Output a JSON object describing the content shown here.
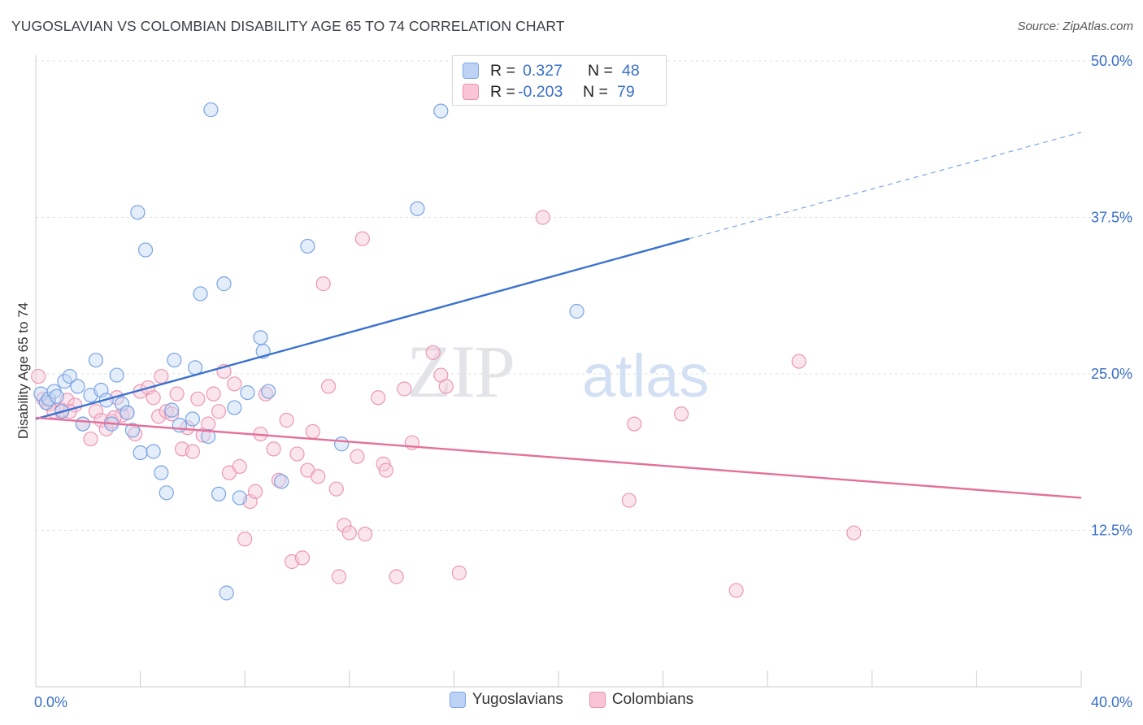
{
  "header": {
    "title": "YUGOSLAVIAN VS COLOMBIAN DISABILITY AGE 65 TO 74 CORRELATION CHART",
    "source": "Source: ZipAtlas.com"
  },
  "watermark": {
    "part1": "ZIP",
    "part2": "atlas"
  },
  "correlation_legend": {
    "rows": [
      {
        "r_label": "R =",
        "r_value": "0.327",
        "n_label": "N =",
        "n_value": "48",
        "color": "#6f9ee6"
      },
      {
        "r_label": "R =",
        "r_value": "-0.203",
        "n_label": "N =",
        "n_value": "79",
        "color": "#ee8eb0"
      }
    ]
  },
  "legend": {
    "items": [
      {
        "label": "Yugoslavians",
        "color": "#6f9ee6"
      },
      {
        "label": "Colombians",
        "color": "#ee8eb0"
      }
    ]
  },
  "chart_data": {
    "type": "scatter",
    "ylabel": "Disability Age 65 to 74",
    "xlim": [
      0,
      40
    ],
    "ylim": [
      0,
      50
    ],
    "x_tick_labels": [
      {
        "value": 0,
        "label": "0.0%"
      },
      {
        "value": 40,
        "label": "40.0%"
      }
    ],
    "y_tick_labels": [
      {
        "value": 50,
        "label": "50.0%"
      },
      {
        "value": 37.5,
        "label": "37.5%"
      },
      {
        "value": 25,
        "label": "25.0%"
      },
      {
        "value": 12.5,
        "label": "12.5%"
      }
    ],
    "legend_position": "bottom",
    "series": [
      {
        "name": "Yugoslavians",
        "color": "#6f9ee6",
        "trend": {
          "x": [
            0,
            25
          ],
          "y": [
            21.4,
            35.8
          ],
          "dashed_to": [
            40,
            44.3
          ]
        },
        "points": [
          [
            0.2,
            23.4
          ],
          [
            0.4,
            22.7
          ],
          [
            0.5,
            23.0
          ],
          [
            0.7,
            23.6
          ],
          [
            0.8,
            23.2
          ],
          [
            1.0,
            22.0
          ],
          [
            1.1,
            24.4
          ],
          [
            1.3,
            24.8
          ],
          [
            1.6,
            24.0
          ],
          [
            1.8,
            21.0
          ],
          [
            2.1,
            23.3
          ],
          [
            2.3,
            26.1
          ],
          [
            2.5,
            23.7
          ],
          [
            2.7,
            22.9
          ],
          [
            2.9,
            21.0
          ],
          [
            3.1,
            24.9
          ],
          [
            3.3,
            22.6
          ],
          [
            3.5,
            21.9
          ],
          [
            3.7,
            20.5
          ],
          [
            3.9,
            37.9
          ],
          [
            4.0,
            18.7
          ],
          [
            4.2,
            34.9
          ],
          [
            4.5,
            18.8
          ],
          [
            4.8,
            17.1
          ],
          [
            5.0,
            15.5
          ],
          [
            5.2,
            22.1
          ],
          [
            5.3,
            26.1
          ],
          [
            5.5,
            20.9
          ],
          [
            6.0,
            21.4
          ],
          [
            6.1,
            25.5
          ],
          [
            6.3,
            31.4
          ],
          [
            6.6,
            20.0
          ],
          [
            6.7,
            46.1
          ],
          [
            7.0,
            15.4
          ],
          [
            7.2,
            32.2
          ],
          [
            7.6,
            22.3
          ],
          [
            7.8,
            15.1
          ],
          [
            8.1,
            23.5
          ],
          [
            8.6,
            27.9
          ],
          [
            8.7,
            26.8
          ],
          [
            8.9,
            23.6
          ],
          [
            9.4,
            16.4
          ],
          [
            10.4,
            35.2
          ],
          [
            11.7,
            19.4
          ],
          [
            14.6,
            38.2
          ],
          [
            15.5,
            46.0
          ],
          [
            20.7,
            30.0
          ],
          [
            7.3,
            7.5
          ]
        ]
      },
      {
        "name": "Colombians",
        "color": "#ee8eb0",
        "trend": {
          "x": [
            0,
            40
          ],
          "y": [
            21.5,
            15.1
          ]
        },
        "points": [
          [
            0.1,
            24.8
          ],
          [
            0.3,
            23.0
          ],
          [
            0.5,
            22.6
          ],
          [
            0.7,
            22.0
          ],
          [
            1.0,
            22.1
          ],
          [
            1.2,
            22.9
          ],
          [
            1.5,
            22.5
          ],
          [
            1.8,
            21.0
          ],
          [
            2.1,
            19.8
          ],
          [
            2.3,
            22.0
          ],
          [
            2.5,
            21.3
          ],
          [
            2.7,
            20.6
          ],
          [
            2.9,
            21.2
          ],
          [
            3.1,
            23.1
          ],
          [
            3.3,
            21.7
          ],
          [
            3.5,
            21.9
          ],
          [
            3.8,
            20.2
          ],
          [
            4.0,
            23.6
          ],
          [
            4.3,
            23.9
          ],
          [
            4.5,
            23.1
          ],
          [
            4.7,
            21.6
          ],
          [
            4.8,
            24.8
          ],
          [
            5.0,
            22.0
          ],
          [
            5.2,
            21.8
          ],
          [
            5.4,
            23.4
          ],
          [
            5.6,
            19.0
          ],
          [
            5.8,
            20.7
          ],
          [
            6.0,
            18.8
          ],
          [
            6.2,
            23.0
          ],
          [
            6.4,
            20.1
          ],
          [
            6.6,
            21.0
          ],
          [
            6.8,
            23.4
          ],
          [
            7.0,
            22.0
          ],
          [
            7.2,
            25.2
          ],
          [
            7.4,
            17.1
          ],
          [
            7.6,
            24.2
          ],
          [
            7.8,
            17.6
          ],
          [
            8.0,
            11.8
          ],
          [
            8.2,
            14.8
          ],
          [
            8.4,
            15.6
          ],
          [
            8.6,
            20.2
          ],
          [
            8.8,
            23.4
          ],
          [
            9.1,
            19.0
          ],
          [
            9.3,
            16.5
          ],
          [
            9.6,
            21.3
          ],
          [
            9.8,
            10.0
          ],
          [
            10.0,
            18.6
          ],
          [
            10.2,
            10.3
          ],
          [
            10.4,
            17.3
          ],
          [
            10.6,
            20.4
          ],
          [
            10.8,
            16.8
          ],
          [
            11.0,
            32.2
          ],
          [
            11.2,
            24.0
          ],
          [
            11.5,
            15.8
          ],
          [
            11.6,
            8.8
          ],
          [
            11.8,
            12.9
          ],
          [
            12.0,
            12.3
          ],
          [
            12.3,
            18.4
          ],
          [
            12.5,
            35.8
          ],
          [
            12.6,
            12.2
          ],
          [
            13.1,
            23.1
          ],
          [
            13.3,
            17.8
          ],
          [
            13.4,
            17.3
          ],
          [
            13.8,
            8.8
          ],
          [
            14.1,
            23.8
          ],
          [
            14.4,
            19.5
          ],
          [
            15.2,
            26.7
          ],
          [
            15.5,
            24.9
          ],
          [
            15.7,
            24.0
          ],
          [
            16.2,
            9.1
          ],
          [
            19.4,
            37.5
          ],
          [
            22.7,
            14.9
          ],
          [
            22.9,
            21.0
          ],
          [
            24.7,
            21.8
          ],
          [
            26.8,
            7.7
          ],
          [
            29.2,
            26.0
          ],
          [
            31.3,
            12.3
          ],
          [
            1.3,
            22.0
          ],
          [
            3.0,
            21.5
          ]
        ]
      }
    ]
  }
}
